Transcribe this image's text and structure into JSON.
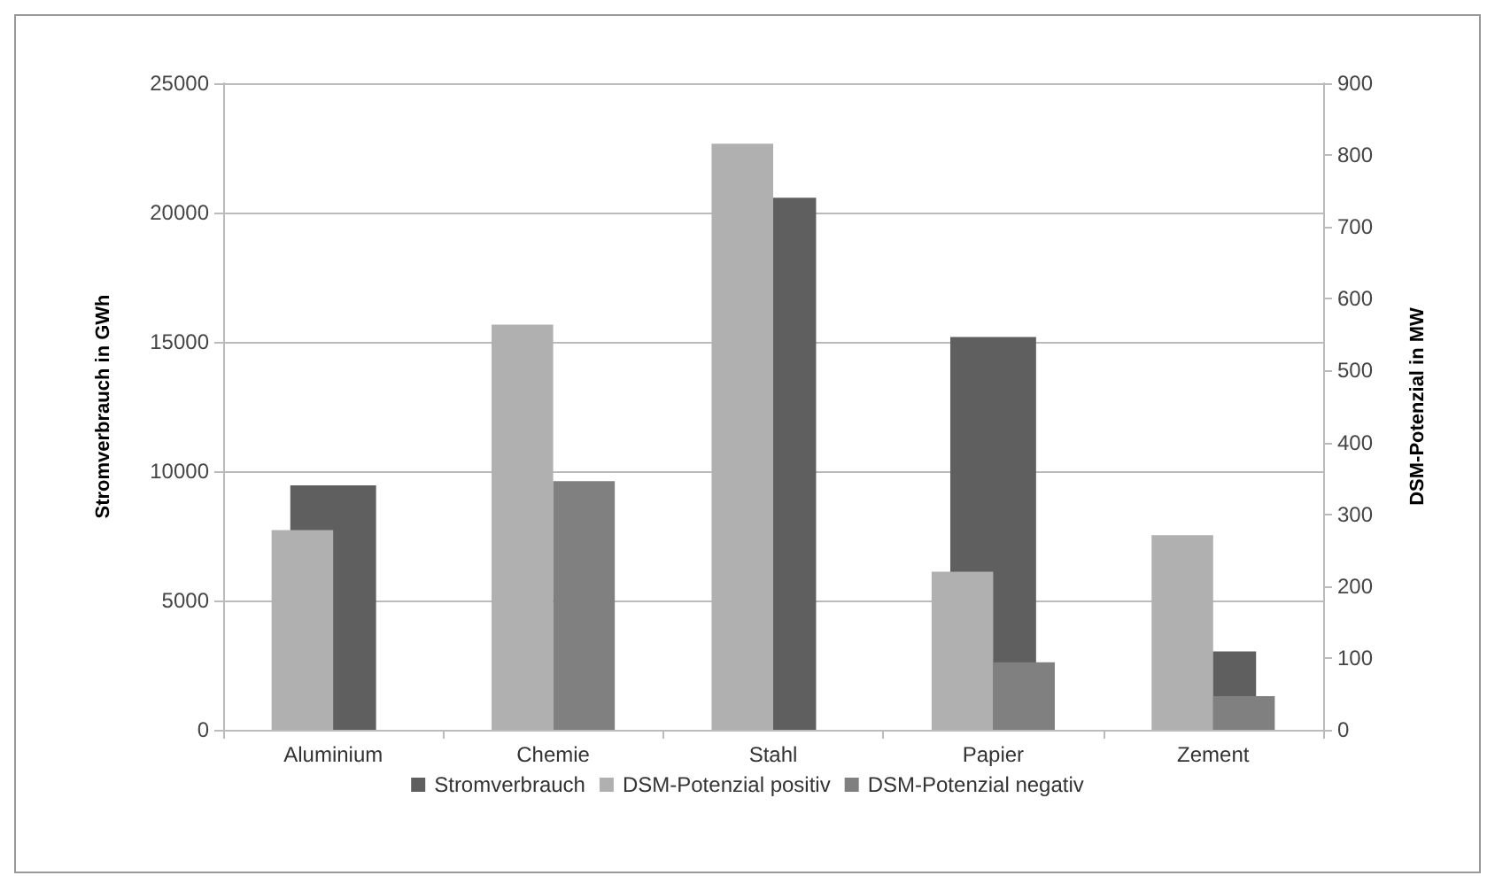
{
  "chart_data": {
    "type": "bar",
    "ylabel": "Stromverbrauch in GWh",
    "y2label": "DSM-Potenzial in MW",
    "categories": [
      "Aluminium",
      "Chemie",
      "Stahl",
      "Papier",
      "Zement"
    ],
    "series": [
      {
        "name": "Stromverbrauch",
        "color": "#5f5f5f",
        "values": [
          9450,
          null,
          20570,
          15190,
          3030
        ]
      },
      {
        "name": "DSM-Potenzial positiv",
        "color": "#b0b0b0",
        "axis": "y2",
        "values": [
          278,
          564,
          816,
          220,
          271
        ]
      },
      {
        "name": "DSM-Potenzial negativ",
        "color": "#808080",
        "axis": "y2",
        "values": [
          null,
          346,
          null,
          94,
          47
        ]
      }
    ],
    "ylim": [
      0,
      25000
    ],
    "yticks": [
      0,
      5000,
      10000,
      15000,
      20000,
      25000
    ],
    "y2lim": [
      0,
      900
    ],
    "y2ticks": [
      0,
      100,
      200,
      300,
      400,
      500,
      600,
      700,
      800,
      900
    ],
    "grid": "y",
    "legend": "bottom"
  }
}
